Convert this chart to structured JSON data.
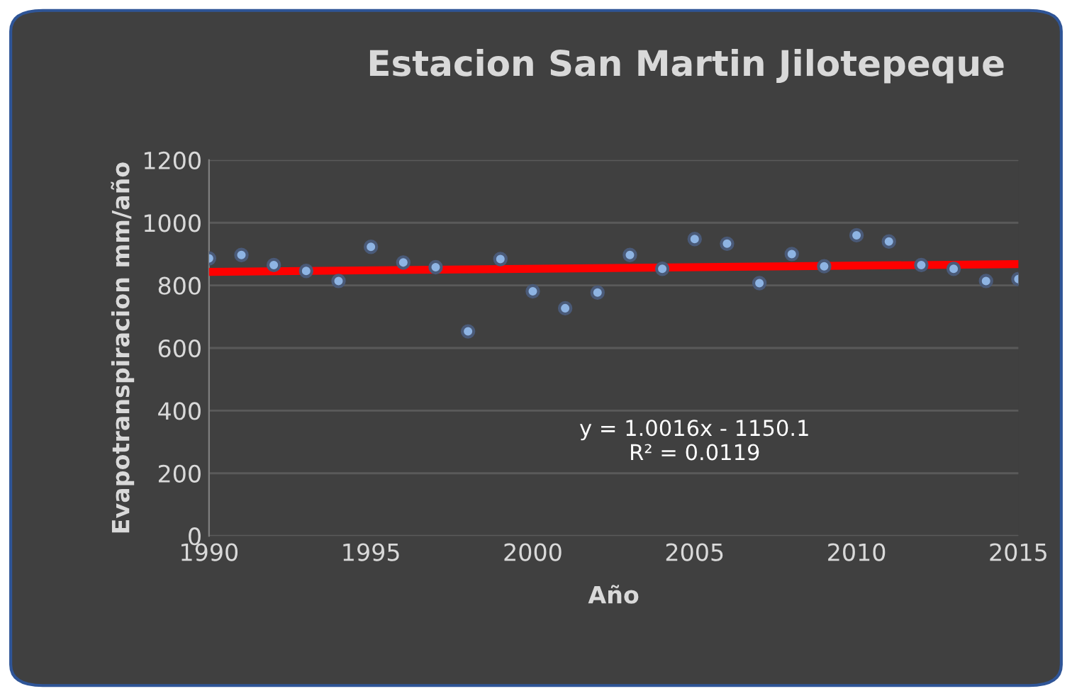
{
  "chart_data": {
    "type": "scatter",
    "title": "Estacion San Martin Jilotepeque",
    "xlabel": "Año",
    "ylabel": "Evapotranspiracion mm/año",
    "x": [
      1990,
      1991,
      1992,
      1993,
      1994,
      1995,
      1996,
      1997,
      1998,
      1999,
      2000,
      2001,
      2002,
      2003,
      2004,
      2005,
      2006,
      2007,
      2008,
      2009,
      2010,
      2011,
      2012,
      2013,
      2014,
      2015
    ],
    "series": [
      {
        "color": "#8eb4e3",
        "values": [
          886,
          897,
          865,
          846,
          814,
          923,
          873,
          858,
          653,
          884,
          781,
          727,
          777,
          897,
          853,
          948,
          933,
          807,
          900,
          861,
          960,
          940,
          865,
          853,
          814,
          820
        ]
      },
      {
        "type": "line",
        "marker": "none",
        "color": "#ff0000",
        "x": [
          1990,
          2015
        ],
        "values": [
          843,
          868
        ]
      }
    ],
    "annotations": [
      "y = 1.0016x - 1150.1\nR² = 0.0119"
    ],
    "xlim": [
      1990,
      2015
    ],
    "xticks": [
      1990,
      1995,
      2000,
      2005,
      2010,
      2015
    ],
    "ylim": [
      0,
      1200
    ],
    "yticks": [
      0,
      200,
      400,
      600,
      800,
      1000,
      1200
    ],
    "grid": "y",
    "marker": "circle"
  }
}
